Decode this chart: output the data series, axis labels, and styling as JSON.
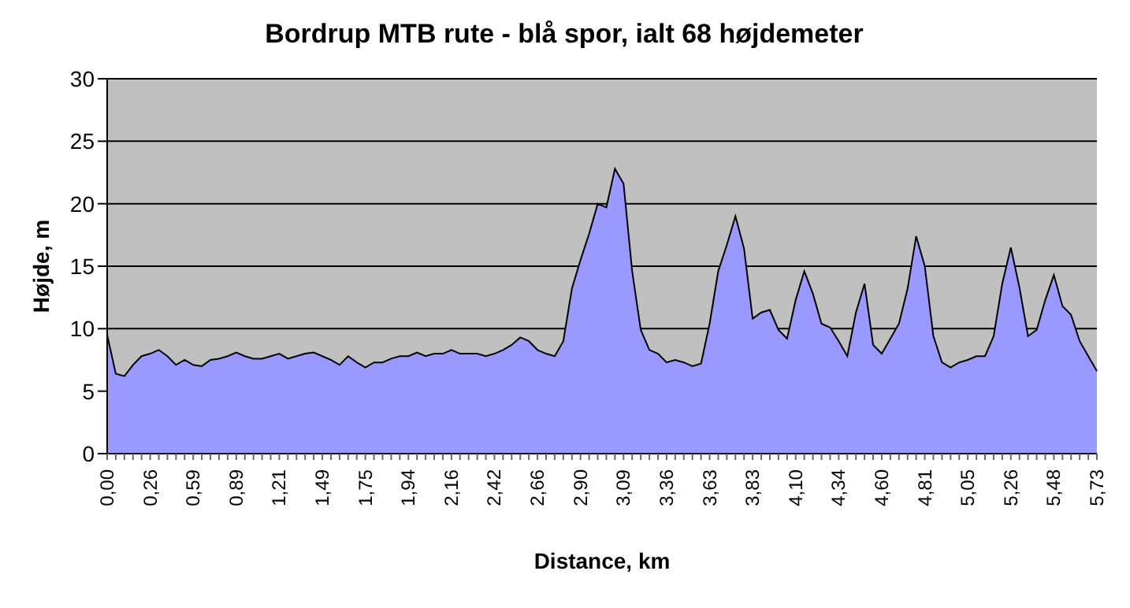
{
  "chart_data": {
    "type": "area",
    "title": "Bordrup MTB rute - blå spor, ialt 68 højdemeter",
    "xlabel": "Distance, km",
    "ylabel": "Højde, m",
    "categories": [
      "0,00",
      null,
      null,
      null,
      null,
      "0,26",
      null,
      null,
      null,
      null,
      "0,59",
      null,
      null,
      null,
      null,
      "0,89",
      null,
      null,
      null,
      null,
      "1,21",
      null,
      null,
      null,
      null,
      "1,49",
      null,
      null,
      null,
      null,
      "1,75",
      null,
      null,
      null,
      null,
      "1,94",
      null,
      null,
      null,
      null,
      "2,16",
      null,
      null,
      null,
      null,
      "2,42",
      null,
      null,
      null,
      null,
      "2,66",
      null,
      null,
      null,
      null,
      "2,90",
      null,
      null,
      null,
      null,
      "3,09",
      null,
      null,
      null,
      null,
      "3,36",
      null,
      null,
      null,
      null,
      "3,63",
      null,
      null,
      null,
      null,
      "3,83",
      null,
      null,
      null,
      null,
      "4,10",
      null,
      null,
      null,
      null,
      "4,34",
      null,
      null,
      null,
      null,
      "4,60",
      null,
      null,
      null,
      null,
      "4,81",
      null,
      null,
      null,
      null,
      "5,05",
      null,
      null,
      null,
      null,
      "5,26",
      null,
      null,
      null,
      null,
      "5,48",
      null,
      null,
      null,
      null,
      "5,73"
    ],
    "series": [
      {
        "color": "#9999ff",
        "values": [
          9.5,
          6.4,
          6.2,
          7.1,
          7.8,
          8.0,
          8.3,
          7.8,
          7.1,
          7.5,
          7.1,
          7.0,
          7.5,
          7.6,
          7.8,
          8.1,
          7.8,
          7.6,
          7.6,
          7.8,
          8.0,
          7.6,
          7.8,
          8.0,
          8.1,
          7.8,
          7.5,
          7.1,
          7.8,
          7.3,
          6.9,
          7.3,
          7.3,
          7.6,
          7.8,
          7.8,
          8.1,
          7.8,
          8.0,
          8.0,
          8.3,
          8.0,
          8.0,
          8.0,
          7.8,
          8.0,
          8.3,
          8.7,
          9.3,
          9.0,
          8.3,
          8.0,
          7.8,
          9.0,
          13.2,
          15.5,
          17.6,
          20.0,
          19.7,
          22.8,
          21.6,
          14.6,
          9.9,
          8.3,
          8.0,
          7.3,
          7.5,
          7.3,
          7.0,
          7.2,
          10.4,
          14.6,
          16.7,
          19.0,
          16.4,
          10.8,
          11.3,
          11.5,
          9.9,
          9.2,
          12.3,
          14.6,
          12.8,
          10.4,
          10.1,
          9.0,
          7.8,
          11.3,
          13.6,
          8.7,
          8.0,
          9.2,
          10.4,
          13.2,
          17.4,
          15.0,
          9.4,
          7.3,
          6.9,
          7.3,
          7.5,
          7.8,
          7.8,
          9.4,
          13.6,
          16.5,
          13.3,
          9.4,
          9.9,
          12.3,
          14.3,
          11.8,
          11.1,
          9.0,
          7.8,
          6.6
        ]
      }
    ],
    "ylim": [
      0,
      30
    ],
    "yticks": [
      0,
      5,
      10,
      15,
      20,
      25,
      30
    ],
    "grid": "y"
  }
}
